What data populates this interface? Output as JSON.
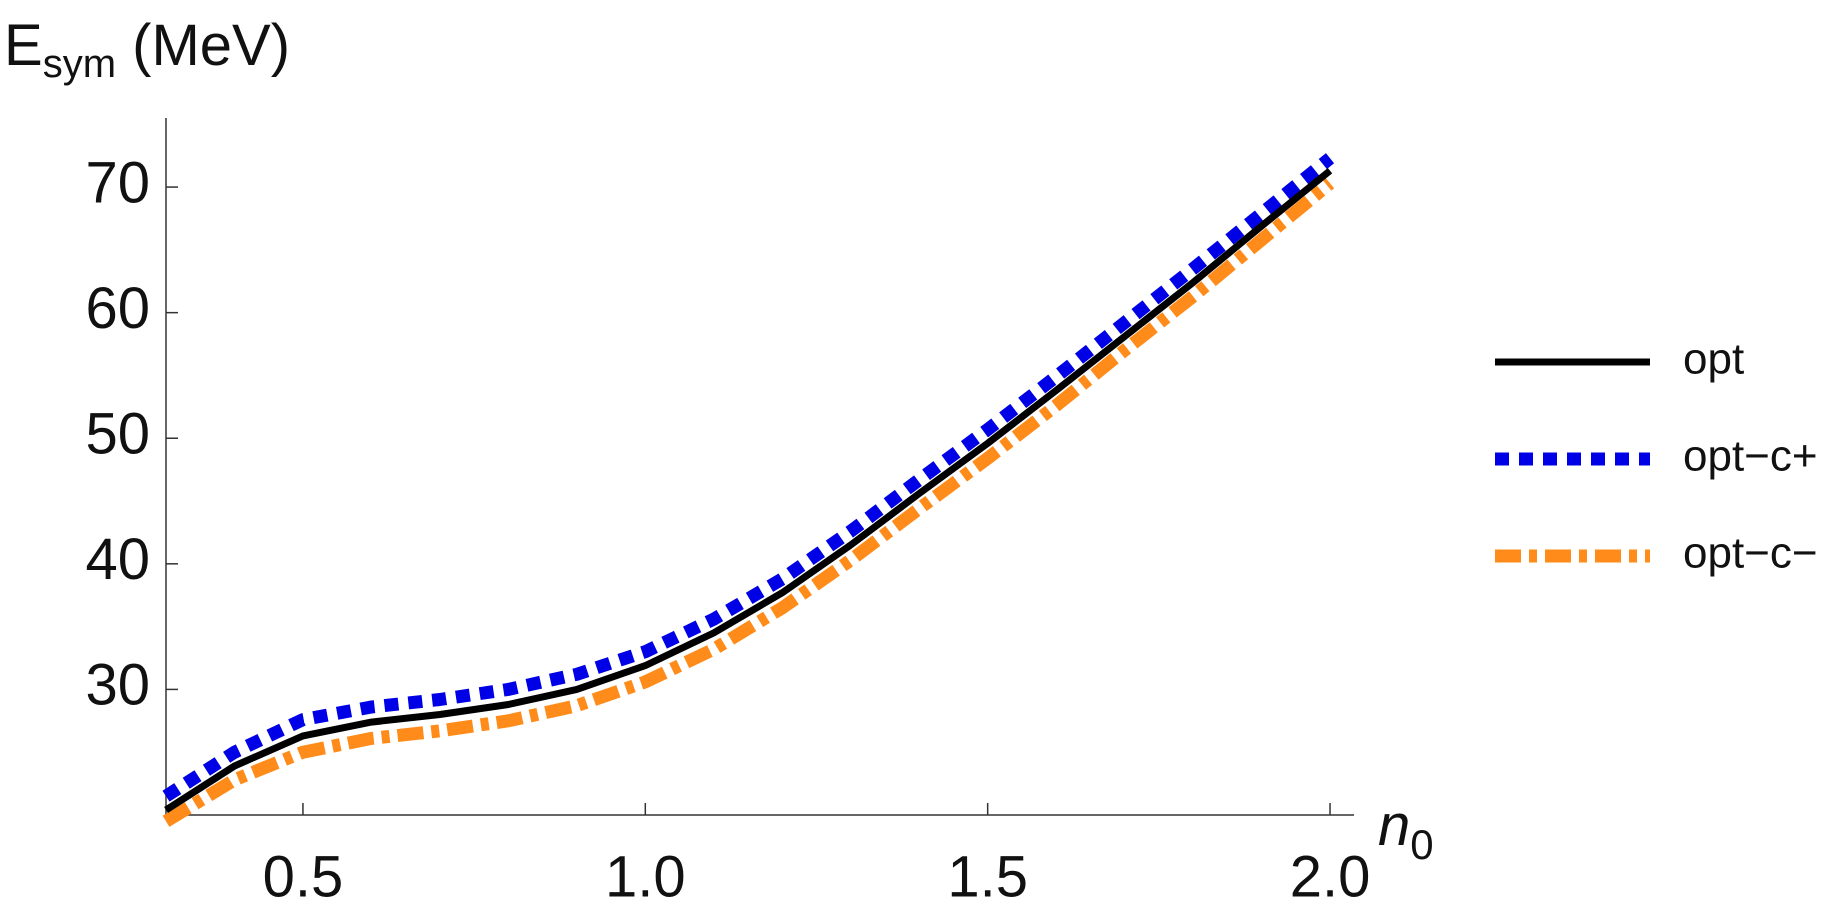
{
  "chart_data": {
    "type": "line",
    "y_label": {
      "base": "E",
      "subscript": "sym",
      "rest": " (MeV)"
    },
    "x_label": {
      "base": "n",
      "subscript": "0"
    },
    "x": [
      0.3,
      0.4,
      0.5,
      0.6,
      0.7,
      0.8,
      0.9,
      1.0,
      1.1,
      1.2,
      1.3,
      1.4,
      1.5,
      1.6,
      1.7,
      1.8,
      1.9,
      2.0
    ],
    "series": [
      {
        "name": "opt",
        "color": "#000000",
        "style": "solid",
        "values": [
          20.4,
          23.9,
          26.3,
          27.4,
          28.0,
          28.8,
          30.0,
          31.9,
          34.5,
          37.7,
          41.5,
          45.6,
          49.6,
          53.8,
          58.1,
          62.4,
          66.9,
          71.3
        ]
      },
      {
        "name": "opt−c+",
        "color": "#0000e6",
        "style": "dashed",
        "values": [
          21.5,
          25.0,
          27.6,
          28.6,
          29.2,
          30.0,
          31.2,
          33.0,
          35.6,
          38.8,
          42.6,
          46.7,
          50.7,
          54.9,
          59.2,
          63.5,
          67.9,
          72.3
        ]
      },
      {
        "name": "opt−c−",
        "color": "#ff8c1a",
        "style": "dotdash",
        "values": [
          19.5,
          22.8,
          25.0,
          26.1,
          26.7,
          27.5,
          28.7,
          30.6,
          33.2,
          36.5,
          40.3,
          44.4,
          48.4,
          52.6,
          57.0,
          61.3,
          65.8,
          70.3
        ]
      }
    ],
    "xlim": [
      0.3,
      2.035
    ],
    "ylim": [
      20,
      75.5
    ],
    "xticks": [
      0.5,
      {
        "value": 1.0,
        "label": "1.0"
      },
      1.5,
      {
        "value": 2.0,
        "label": "2.0"
      }
    ],
    "yticks": [
      30,
      40,
      50,
      60,
      70
    ],
    "grid": false,
    "legend": "right"
  }
}
